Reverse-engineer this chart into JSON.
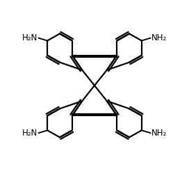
{
  "background": "#ffffff",
  "line_color": "#000000",
  "line_width": 1.6,
  "font_size": 8.5,
  "nh2_label": "NH₂",
  "h2n_label": "H₂N",
  "xlim": [
    -5.8,
    5.8
  ],
  "ylim": [
    -5.5,
    5.5
  ]
}
